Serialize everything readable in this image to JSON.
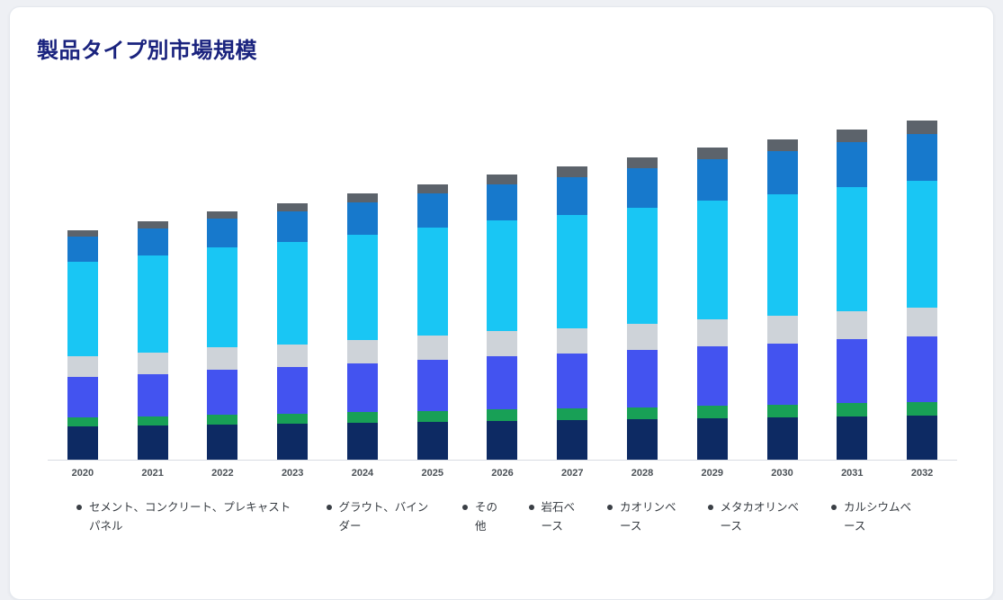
{
  "page": {
    "title": "製品タイプ別市場規模"
  },
  "chart_data": {
    "type": "bar",
    "stacked": true,
    "title": "製品タイプ別市場規模",
    "xlabel": "",
    "ylabel": "",
    "grid": false,
    "y_axis_visible": false,
    "legend_position": "bottom",
    "categories": [
      "2020",
      "2021",
      "2022",
      "2023",
      "2024",
      "2025",
      "2026",
      "2027",
      "2028",
      "2029",
      "2030",
      "2031",
      "2032"
    ],
    "series": [
      {
        "name": "セメント、コンクリート、プレキャストパネル",
        "color": "#0d2a63",
        "values": [
          37,
          38,
          39,
          40,
          41,
          42,
          43,
          44,
          45,
          46,
          47,
          48,
          49
        ]
      },
      {
        "name": "グラウト、バインダー",
        "color": "#18a056",
        "values": [
          10,
          10,
          11,
          11,
          12,
          12,
          13,
          13,
          13,
          14,
          14,
          15,
          15
        ]
      },
      {
        "name": "その他",
        "color": "#4353f0",
        "values": [
          45,
          47,
          50,
          52,
          54,
          57,
          59,
          61,
          64,
          66,
          68,
          71,
          73
        ]
      },
      {
        "name": "岩石ベース",
        "color": "#ced3d9",
        "values": [
          23,
          24,
          25,
          25,
          26,
          27,
          28,
          28,
          29,
          30,
          31,
          31,
          32
        ]
      },
      {
        "name": "カオリンベース",
        "color": "#19c6f4",
        "values": [
          105,
          108,
          111,
          114,
          117,
          120,
          123,
          126,
          129,
          132,
          135,
          138,
          141
        ]
      },
      {
        "name": "メタカオリンベース",
        "color": "#1779cc",
        "values": [
          28,
          30,
          32,
          34,
          36,
          38,
          40,
          42,
          44,
          46,
          48,
          50,
          52
        ]
      },
      {
        "name": "カルシウムベース",
        "color": "#5c636b",
        "values": [
          7,
          8,
          8,
          9,
          10,
          10,
          11,
          12,
          12,
          13,
          13,
          14,
          15
        ]
      }
    ]
  }
}
